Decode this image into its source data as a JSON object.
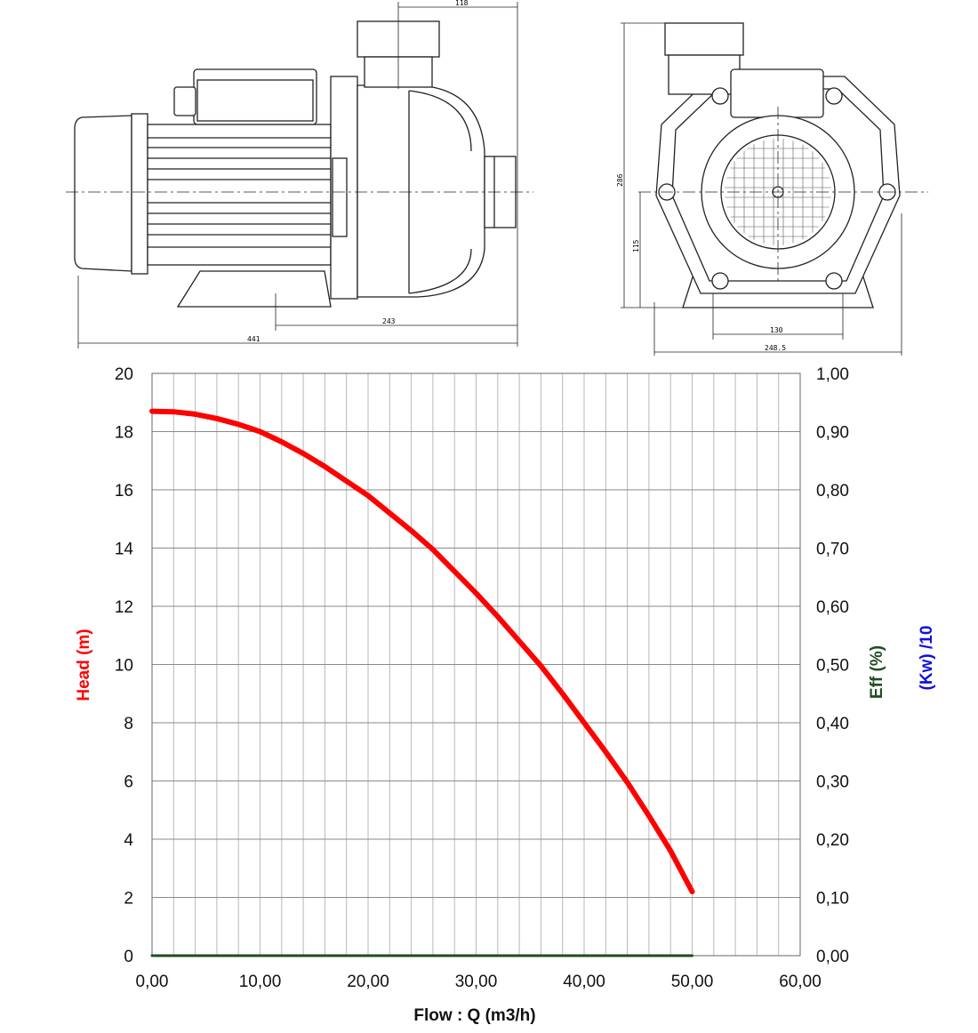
{
  "drawings": {
    "side_view": {
      "dimensions": [
        "118",
        "243",
        "441"
      ]
    },
    "front_view": {
      "dimensions": [
        "286",
        "115",
        "130",
        "248.5"
      ]
    }
  },
  "chart_data": {
    "type": "line",
    "xlabel": "Flow : Q (m3/h)",
    "ylabel": "Head (m)",
    "y2labels": [
      "Eff (%)",
      "(Kw) /10"
    ],
    "xlim": [
      0,
      60
    ],
    "ylim": [
      0,
      20
    ],
    "y2lim": [
      0,
      1
    ],
    "x_ticks": [
      "0,00",
      "10,00",
      "20,00",
      "30,00",
      "40,00",
      "50,00",
      "60,00"
    ],
    "y_ticks": [
      "0",
      "2",
      "4",
      "6",
      "8",
      "10",
      "12",
      "14",
      "16",
      "18",
      "20"
    ],
    "y2_ticks": [
      "0,00",
      "0,10",
      "0,20",
      "0,30",
      "0,40",
      "0,50",
      "0,60",
      "0,70",
      "0,80",
      "0,90",
      "1,00"
    ],
    "grid": true,
    "series": [
      {
        "axis": "left",
        "color": "#ff0000",
        "x": [
          0,
          2,
          4,
          6,
          8,
          10,
          12,
          14,
          16,
          18,
          20,
          22,
          24,
          26,
          28,
          30,
          32,
          34,
          36,
          38,
          40,
          42,
          44,
          46,
          48,
          50
        ],
        "y": [
          18.7,
          18.68,
          18.6,
          18.45,
          18.25,
          18.0,
          17.65,
          17.25,
          16.8,
          16.3,
          15.8,
          15.2,
          14.6,
          13.95,
          13.2,
          12.45,
          11.65,
          10.8,
          9.95,
          9.0,
          8.0,
          7.0,
          5.95,
          4.8,
          3.6,
          2.2
        ]
      },
      {
        "axis": "right",
        "color": "#1e4d1e",
        "x": [
          0,
          50
        ],
        "y": [
          0,
          0
        ]
      }
    ],
    "label_colors": {
      "head": "#ff0000",
      "eff": "#1e4d1e",
      "kw": "#1010e0"
    }
  }
}
